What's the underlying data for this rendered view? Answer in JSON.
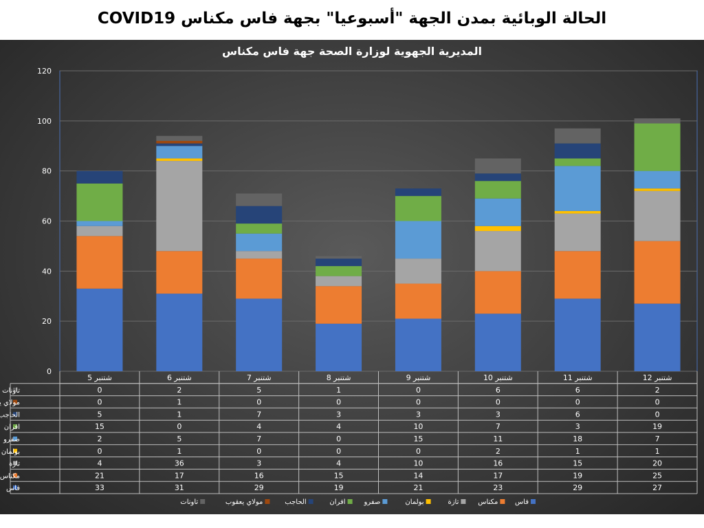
{
  "page_title": "الحالة الوبائية بمدن الجهة \"أسبوعيا\" بجهة فاس مكناس COVID19",
  "chart_data": {
    "type": "bar",
    "stacked": true,
    "title": "المديرية الجهوية لوزارة الصحة جهة فاس مكناس",
    "xlabel": "",
    "ylabel": "",
    "ylim": [
      0,
      120
    ],
    "yticks": [
      0,
      20,
      40,
      60,
      80,
      100,
      120
    ],
    "grid": true,
    "legend_position": "bottom",
    "categories": [
      "شتنبر 5",
      "شتنبر 6",
      "شتنبر 7",
      "شتنبر 8",
      "شتنبر 9",
      "شتنبر 10",
      "شتنبر 11",
      "12 شتنبر"
    ],
    "series": [
      {
        "name": "فاس",
        "color": "#4472c4",
        "values": [
          33,
          31,
          29,
          19,
          21,
          23,
          29,
          27
        ]
      },
      {
        "name": "مكناس",
        "color": "#ed7d31",
        "values": [
          21,
          17,
          16,
          15,
          14,
          17,
          19,
          25
        ]
      },
      {
        "name": "تازة",
        "color": "#a5a5a5",
        "values": [
          4,
          36,
          3,
          4,
          10,
          16,
          15,
          20
        ]
      },
      {
        "name": "بولمان",
        "color": "#ffc000",
        "values": [
          0,
          1,
          0,
          0,
          0,
          2,
          1,
          1
        ]
      },
      {
        "name": "صفرو",
        "color": "#5b9bd5",
        "values": [
          2,
          5,
          7,
          0,
          15,
          11,
          18,
          7
        ]
      },
      {
        "name": "افران",
        "color": "#70ad47",
        "values": [
          15,
          0,
          4,
          4,
          10,
          7,
          3,
          19
        ]
      },
      {
        "name": "الحاجب",
        "color": "#264478",
        "values": [
          5,
          1,
          7,
          3,
          3,
          3,
          6,
          0
        ]
      },
      {
        "name": "مولاي يعقوب",
        "color": "#9e480e",
        "values": [
          0,
          1,
          0,
          0,
          0,
          0,
          0,
          0
        ]
      },
      {
        "name": "تاونات",
        "color": "#636363",
        "values": [
          0,
          2,
          5,
          1,
          0,
          6,
          6,
          2
        ]
      }
    ]
  }
}
